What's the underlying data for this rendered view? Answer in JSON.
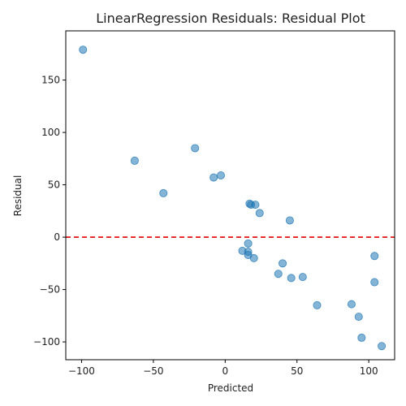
{
  "chart_data": {
    "type": "scatter",
    "title": "LinearRegression Residuals: Residual Plot",
    "xlabel": "Predicted",
    "ylabel": "Residual",
    "xlim": [
      -111,
      118
    ],
    "ylim": [
      -117,
      197
    ],
    "xticks": [
      -100,
      -50,
      0,
      50,
      100
    ],
    "yticks": [
      -100,
      -50,
      0,
      50,
      100,
      150
    ],
    "reference_line": {
      "y": 0,
      "color": "#e00000",
      "style": "dashed"
    },
    "marker_color": "#1f77b4",
    "series": [
      {
        "x": [
          -99,
          -63,
          -43,
          -21,
          -8,
          -3,
          16,
          17,
          18,
          21,
          24,
          12,
          16,
          16,
          20,
          37,
          40,
          45,
          46,
          54,
          64,
          88,
          93,
          95,
          104,
          104,
          109
        ],
        "y": [
          179,
          73,
          42,
          85,
          57,
          59,
          -6,
          32,
          31,
          31,
          23,
          -13,
          -14,
          -17,
          -20,
          -35,
          -25,
          16,
          -39,
          -38,
          -65,
          -64,
          -76,
          -96,
          -18,
          -43,
          -104
        ]
      }
    ]
  }
}
